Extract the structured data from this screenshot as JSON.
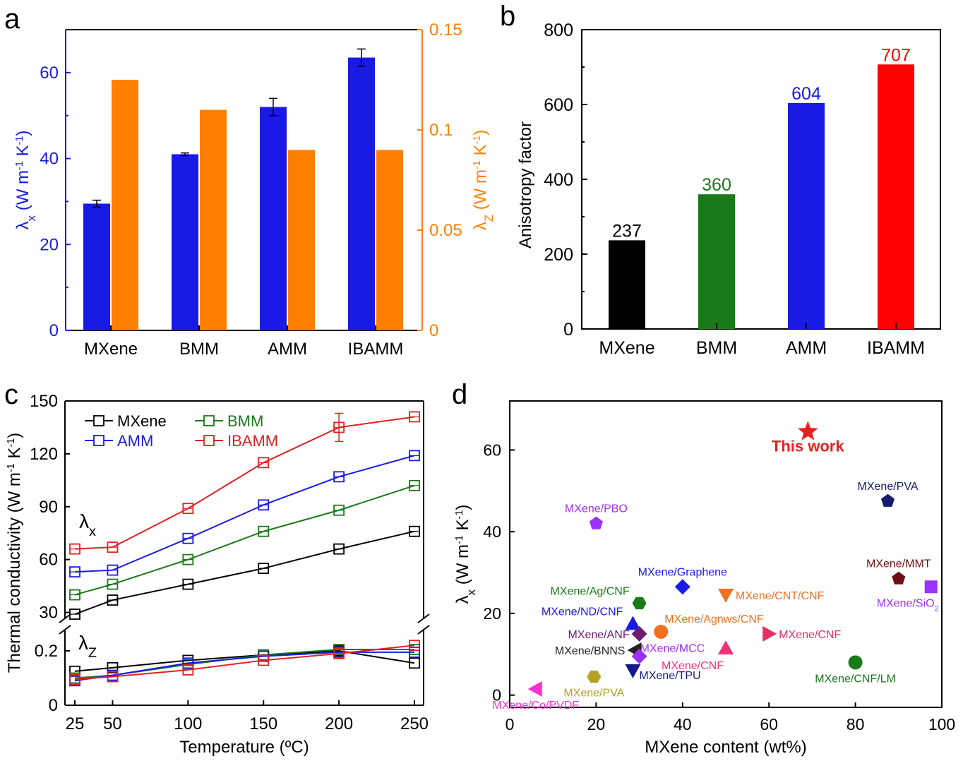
{
  "panels": {
    "a": "a",
    "b": "b",
    "c": "c",
    "d": "d"
  },
  "chart_data": [
    {
      "panel": "a",
      "type": "bar",
      "categories": [
        "MXene",
        "BMM",
        "AMM",
        "IBAMM"
      ],
      "series": [
        {
          "name": "λx",
          "axis": "left",
          "color": "#1a1ae6",
          "values": [
            29.5,
            41,
            52,
            63.5
          ],
          "errors": [
            0.8,
            0.3,
            2.0,
            2.0
          ]
        },
        {
          "name": "λz",
          "axis": "right",
          "color": "#ff8000",
          "values": [
            0.125,
            0.11,
            0.09,
            0.09
          ]
        }
      ],
      "yleft": {
        "label_main": "λ",
        "label_sub": "x",
        "label_rest": " (W m",
        "label_exp1": "-1",
        "label_mid": " K",
        "label_exp2": "-1",
        "label_end": ")",
        "lim": [
          0,
          70
        ],
        "ticks": [
          0,
          20,
          40,
          60
        ],
        "tick_labels": [
          "0",
          "20",
          "40",
          "60"
        ],
        "color": "#1a1ae6"
      },
      "yright": {
        "label_main": "λ",
        "label_sub": "Z",
        "label_rest": " (W m",
        "label_exp1": "-1",
        "label_mid": " K",
        "label_exp2": "-1",
        "label_end": ")",
        "lim": [
          0,
          0.15
        ],
        "ticks": [
          0,
          0.05,
          0.1,
          0.15
        ],
        "tick_labels": [
          "0",
          "0.05",
          "0.1",
          "0.15"
        ],
        "color": "#ff8000"
      }
    },
    {
      "panel": "b",
      "type": "bar",
      "categories": [
        "MXene",
        "BMM",
        "AMM",
        "IBAMM"
      ],
      "values": [
        237,
        360,
        604,
        707
      ],
      "value_labels": [
        "237",
        "360",
        "604",
        "707"
      ],
      "colors": [
        "#000000",
        "#1a7a1a",
        "#1a1ae6",
        "#ff0000"
      ],
      "ylabel": "Anisotropy factor",
      "ylim": [
        0,
        800
      ],
      "yticks": [
        0,
        200,
        400,
        600,
        800
      ],
      "ytick_labels": [
        "0",
        "200",
        "400",
        "600",
        "800"
      ]
    },
    {
      "panel": "c",
      "type": "line",
      "x": [
        25,
        50,
        100,
        150,
        200,
        250
      ],
      "xticks": [
        25,
        50,
        100,
        150,
        200,
        250
      ],
      "xtick_labels": [
        "25",
        "50",
        "100",
        "150",
        "200",
        "250"
      ],
      "xlabel": "Temperature (ºC)",
      "ylabel": "Thermal conductivity (W m",
      "ylabel_exp1": "-1",
      "ylabel_mid": " K",
      "ylabel_exp2": "-1",
      "ylabel_end": ")",
      "upper": {
        "ylim": [
          25,
          150
        ],
        "yticks": [
          30,
          60,
          90,
          120,
          150
        ],
        "ytick_labels": [
          "30",
          "60",
          "90",
          "120",
          "150"
        ],
        "annotation_main": "λ",
        "annotation_sub": "x"
      },
      "lower": {
        "ylim": [
          0,
          0.27
        ],
        "yticks": [
          0,
          0.2
        ],
        "ytick_labels": [
          "0",
          "0.2"
        ],
        "annotation_main": "λ",
        "annotation_sub": "Z"
      },
      "series": [
        {
          "name": "MXene",
          "color": "#000000",
          "upper": [
            29,
            37,
            46,
            55,
            66,
            76
          ],
          "lower": [
            0.125,
            0.138,
            0.165,
            0.185,
            0.2,
            0.155
          ]
        },
        {
          "name": "BMM",
          "color": "#1a7a1a",
          "upper": [
            40,
            46,
            60,
            76,
            88,
            102
          ],
          "lower": [
            0.1,
            0.11,
            0.15,
            0.185,
            0.205,
            0.205
          ]
        },
        {
          "name": "AMM",
          "color": "#1a1ae6",
          "upper": [
            53,
            54,
            72,
            91,
            107,
            119
          ],
          "lower": [
            0.09,
            0.11,
            0.155,
            0.18,
            0.195,
            0.195
          ]
        },
        {
          "name": "IBAMM",
          "color": "#e02020",
          "upper": [
            66,
            67,
            89,
            115,
            135,
            141
          ],
          "lower": [
            0.095,
            0.105,
            0.13,
            0.165,
            0.19,
            0.22
          ]
        }
      ]
    },
    {
      "panel": "d",
      "type": "scatter",
      "xlabel": "MXene content (wt%)",
      "ylabel_main": "λ",
      "ylabel_sub": "x",
      "ylabel_rest": " (W m",
      "ylabel_exp1": "-1",
      "ylabel_mid": " K",
      "ylabel_exp2": "-1",
      "ylabel_end": ")",
      "xlim": [
        0,
        100
      ],
      "ylim": [
        -3,
        72
      ],
      "xticks": [
        0,
        20,
        40,
        60,
        80,
        100
      ],
      "xtick_labels": [
        "0",
        "20",
        "40",
        "60",
        "80",
        "100"
      ],
      "yticks": [
        0,
        20,
        40,
        60
      ],
      "ytick_labels": [
        "0",
        "20",
        "40",
        "60"
      ],
      "points": [
        {
          "label": "This work",
          "x": 69,
          "y": 64.5,
          "marker": "star",
          "color": "#e62020",
          "bold": true,
          "label_pos": "below"
        },
        {
          "label": "MXene/PVA",
          "x": 87.5,
          "y": 47.5,
          "marker": "pentagon",
          "color": "#141a6e",
          "label_pos": "above"
        },
        {
          "label": "MXene/PBO",
          "x": 20,
          "y": 42,
          "marker": "pentagon",
          "color": "#9b30ff",
          "label_pos": "above"
        },
        {
          "label": "MXene/MMT",
          "x": 90,
          "y": 28.5,
          "marker": "pentagon",
          "color": "#6e0f14",
          "label_pos": "above"
        },
        {
          "label": "MXene/Graphene",
          "x": 40,
          "y": 26.5,
          "marker": "diamond",
          "color": "#1a1ae6",
          "label_pos": "above"
        },
        {
          "label": "MXene/SiO",
          "sub": "2",
          "x": 97.5,
          "y": 26.5,
          "marker": "square",
          "color": "#9b30ff",
          "label_pos": "below-left"
        },
        {
          "label": "MXene/Ag/CNF",
          "x": 30,
          "y": 22.5,
          "marker": "hexagon",
          "color": "#1a7a1a",
          "label_pos": "left-up"
        },
        {
          "label": "MXene/CNT/CNF",
          "x": 50,
          "y": 24.5,
          "marker": "tri-down",
          "color": "#f07020",
          "label_pos": "right"
        },
        {
          "label": "MXene/ND/CNF",
          "x": 28.5,
          "y": 17.5,
          "marker": "tri-up",
          "color": "#1a1ae6",
          "label_pos": "left-up"
        },
        {
          "label": "MXene/Agnws/CNF",
          "x": 35,
          "y": 15.5,
          "marker": "circle",
          "color": "#f07020",
          "label_pos": "up-right"
        },
        {
          "label": "MXene/ANF",
          "x": 30,
          "y": 15,
          "marker": "diamond",
          "color": "#6e1a6e",
          "label_pos": "left"
        },
        {
          "label": "MXene/CNF",
          "x": 60,
          "y": 15,
          "marker": "tri-right",
          "color": "#e63060",
          "label_pos": "right"
        },
        {
          "label": "MXene/BNNS",
          "x": 29,
          "y": 11,
          "marker": "tri-left",
          "color": "#222222",
          "label_pos": "left"
        },
        {
          "label": "MXene/MCC",
          "x": 30,
          "y": 9.5,
          "marker": "diamond",
          "color": "#9b30ff",
          "label_pos": "right-up"
        },
        {
          "label": "MXene/CNF",
          "x": 50,
          "y": 11.5,
          "marker": "tri-up",
          "color": "#f0307a",
          "label_pos": "below-left"
        },
        {
          "label": "MXene/TPU",
          "x": 28.5,
          "y": 6,
          "marker": "tri-down",
          "color": "#141a8c",
          "label_pos": "right-down"
        },
        {
          "label": "MXene/CNF/LM",
          "x": 80,
          "y": 8,
          "marker": "circle",
          "color": "#1a7a1a",
          "label_pos": "below"
        },
        {
          "label": "MXene/PVA",
          "x": 19.5,
          "y": 4.5,
          "marker": "hexagon",
          "color": "#b3a320",
          "label_pos": "below"
        },
        {
          "label": "MXene/Co/PVDF",
          "x": 6,
          "y": 1.5,
          "marker": "tri-left",
          "color": "#ff30d0",
          "label_pos": "below"
        }
      ]
    }
  ]
}
